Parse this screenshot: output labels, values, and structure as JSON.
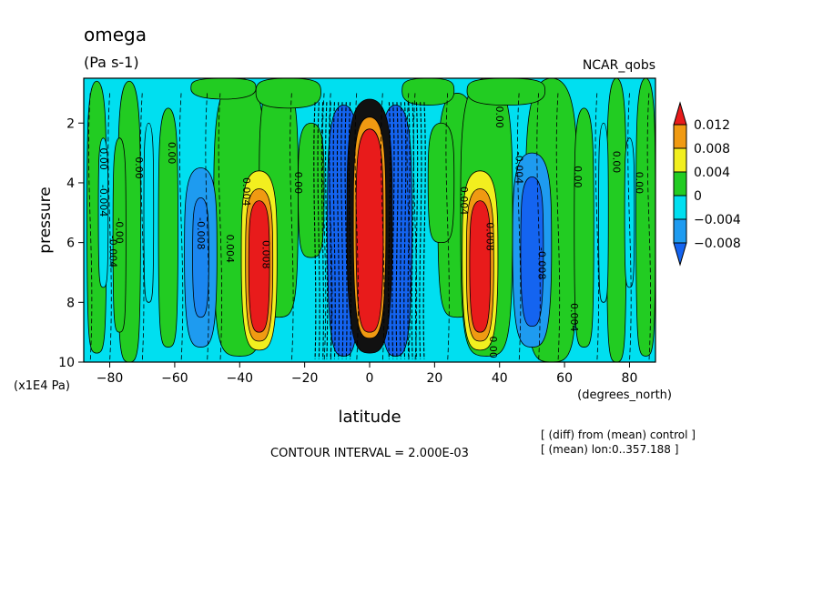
{
  "header": {
    "title": "omega",
    "units": "(Pa s-1)",
    "dataset": "NCAR_qobs"
  },
  "footer": {
    "contour_interval": "CONTOUR INTERVAL = 2.000E-03",
    "note_line1": "[ (diff) from (mean) control ]",
    "note_line2": "[ (mean) lon:0..357.188 ]"
  },
  "colors": {
    "red": "#e81b1b",
    "orange": "#f09a12",
    "yellow": "#f2ef1f",
    "green": "#22cc22",
    "cyan": "#00dff0",
    "light_blue": "#1e9bf0",
    "blue": "#1464f0"
  },
  "chart_data": {
    "type": "heatmap",
    "title": "omega",
    "subtitle": "(Pa s-1)",
    "xlabel": "latitude",
    "x_units": "(degrees_north)",
    "ylabel": "pressure",
    "y_units": "(x1E4 Pa)",
    "xlim": [
      -88,
      88
    ],
    "ylim": [
      10,
      0.5
    ],
    "x_ticks": [
      -80,
      -60,
      -40,
      -20,
      0,
      20,
      40,
      60,
      80
    ],
    "x_tick_labels": [
      "−80",
      "−60",
      "−40",
      "−20",
      "0",
      "20",
      "40",
      "60",
      "80"
    ],
    "y_ticks": [
      2,
      4,
      6,
      8,
      10
    ],
    "y_tick_labels": [
      "2",
      "4",
      "6",
      "8",
      "10"
    ],
    "colorbar": {
      "labels": [
        "0.012",
        "0.008",
        "0.004",
        "0",
        "−0.004",
        "−0.008"
      ],
      "colors": [
        "#e81b1b",
        "#f09a12",
        "#f2ef1f",
        "#22cc22",
        "#00dff0",
        "#1e9bf0",
        "#1464f0"
      ]
    },
    "contour_interval": 0.002,
    "features": [
      {
        "kind": "positive",
        "lat_center": 0,
        "lat_halfwidth": 5,
        "p_top": 2.5,
        "p_bottom": 9.5,
        "level": 0.012
      },
      {
        "kind": "negative",
        "lat_center": -8,
        "lat_halfwidth": 4,
        "p_top": 2,
        "p_bottom": 9.5,
        "level": -0.008
      },
      {
        "kind": "negative",
        "lat_center": 8,
        "lat_halfwidth": 4,
        "p_top": 2,
        "p_bottom": 9.5,
        "level": -0.008
      },
      {
        "kind": "positive",
        "lat_center": -34,
        "lat_halfwidth": 5,
        "p_top": 4,
        "p_bottom": 9.5,
        "level": 0.012
      },
      {
        "kind": "positive",
        "lat_center": 34,
        "lat_halfwidth": 5,
        "p_top": 4,
        "p_bottom": 9.5,
        "level": 0.012
      },
      {
        "kind": "negative",
        "lat_center": -52,
        "lat_halfwidth": 5,
        "p_top": 3.5,
        "p_bottom": 9.5,
        "level": -0.006
      },
      {
        "kind": "negative",
        "lat_center": 50,
        "lat_halfwidth": 6,
        "p_top": 3,
        "p_bottom": 9.5,
        "level": -0.006
      }
    ],
    "contour_labels": [
      {
        "text": "0.00",
        "lat": -83,
        "p": 3.2
      },
      {
        "text": "0.00",
        "lat": -72,
        "p": 3.5
      },
      {
        "text": "0.00",
        "lat": -62,
        "p": 3.0
      },
      {
        "text": "-0.004",
        "lat": -83,
        "p": 4.6
      },
      {
        "text": "-0.00",
        "lat": -78,
        "p": 5.6
      },
      {
        "text": "-0.004",
        "lat": -80,
        "p": 6.3
      },
      {
        "text": "-0.008",
        "lat": -53,
        "p": 5.7
      },
      {
        "text": "0.004",
        "lat": -44,
        "p": 6.2
      },
      {
        "text": "0.004",
        "lat": -39,
        "p": 4.3
      },
      {
        "text": "0.008",
        "lat": -33,
        "p": 6.4
      },
      {
        "text": "0.00",
        "lat": -23,
        "p": 4.0
      },
      {
        "text": "0.00",
        "lat": 37,
        "p": 9.5
      },
      {
        "text": "0.004",
        "lat": 28,
        "p": 4.6
      },
      {
        "text": "0.008",
        "lat": 36,
        "p": 5.8
      },
      {
        "text": "-0.004",
        "lat": 45,
        "p": 3.5
      },
      {
        "text": "-0.008",
        "lat": 52,
        "p": 6.7
      },
      {
        "text": "0.004",
        "lat": 62,
        "p": 8.5
      },
      {
        "text": "0.00",
        "lat": 63,
        "p": 3.8
      },
      {
        "text": "0.00",
        "lat": 75,
        "p": 3.3
      },
      {
        "text": "0.00",
        "lat": 82,
        "p": 4.0
      },
      {
        "text": "0.00",
        "lat": 39,
        "p": 1.8
      }
    ]
  }
}
